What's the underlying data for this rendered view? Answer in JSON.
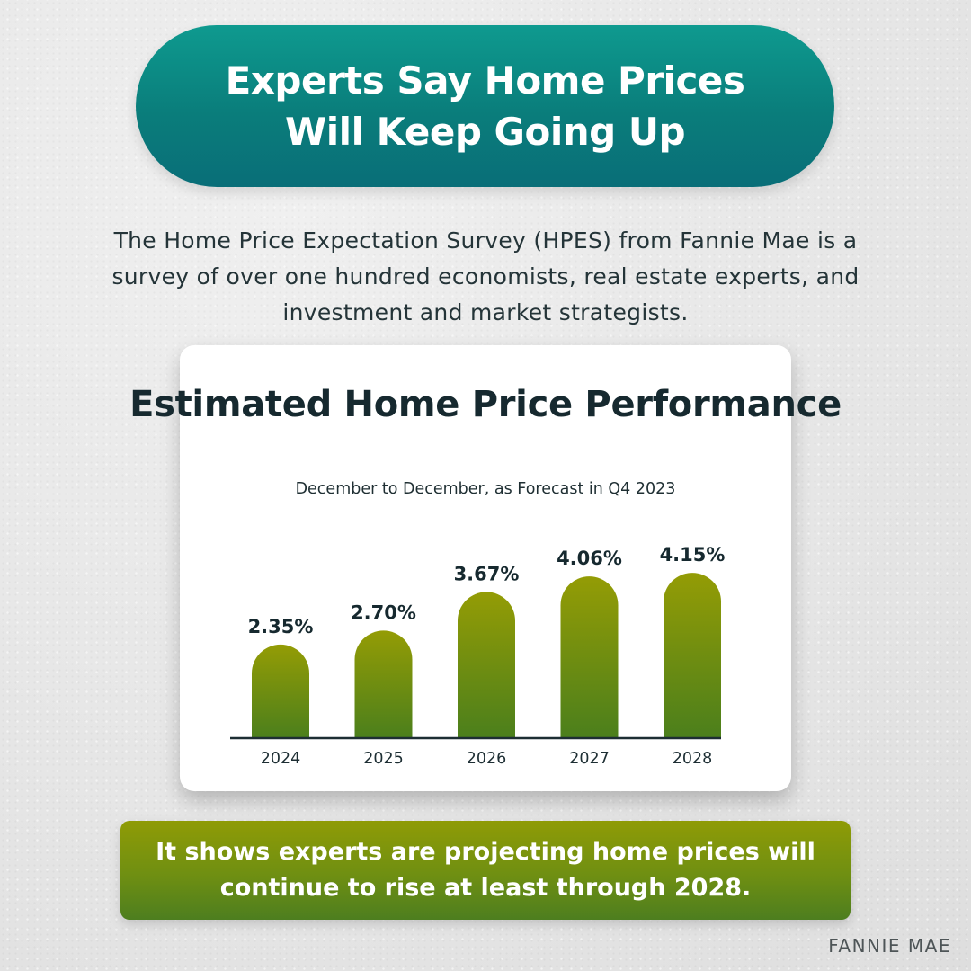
{
  "header": {
    "title": "Experts Say Home Prices Will Keep Going Up"
  },
  "intro": {
    "text": "The Home Price Expectation Survey (HPES) from Fannie Mae is a survey of over one hundred economists, real estate experts, and investment and market strategists."
  },
  "chart_data": {
    "type": "bar",
    "title": "Estimated Home Price Performance",
    "subtitle": "December to December, as Forecast in Q4 2023",
    "categories": [
      "2024",
      "2025",
      "2026",
      "2027",
      "2028"
    ],
    "values": [
      2.35,
      2.7,
      3.67,
      4.06,
      4.15
    ],
    "value_labels": [
      "2.35%",
      "2.70%",
      "3.67%",
      "4.06%",
      "4.15%"
    ],
    "xlabel": "",
    "ylabel": "",
    "ylim": [
      0,
      4.5
    ],
    "grid": false,
    "legend": "none",
    "colors": {
      "bar_top": "#949c05",
      "bar_bottom": "#4b7f1c",
      "axis": "#1d2e33",
      "label": "#16292f"
    }
  },
  "conclusion": {
    "text": "It shows experts are projecting home prices will continue to rise at least through 2028."
  },
  "source": {
    "text": "FANNIE MAE"
  },
  "colors": {
    "title_pill": "#0a7d7b",
    "conclusion_box": "#6f8f12",
    "background": "#e9e9e9"
  }
}
